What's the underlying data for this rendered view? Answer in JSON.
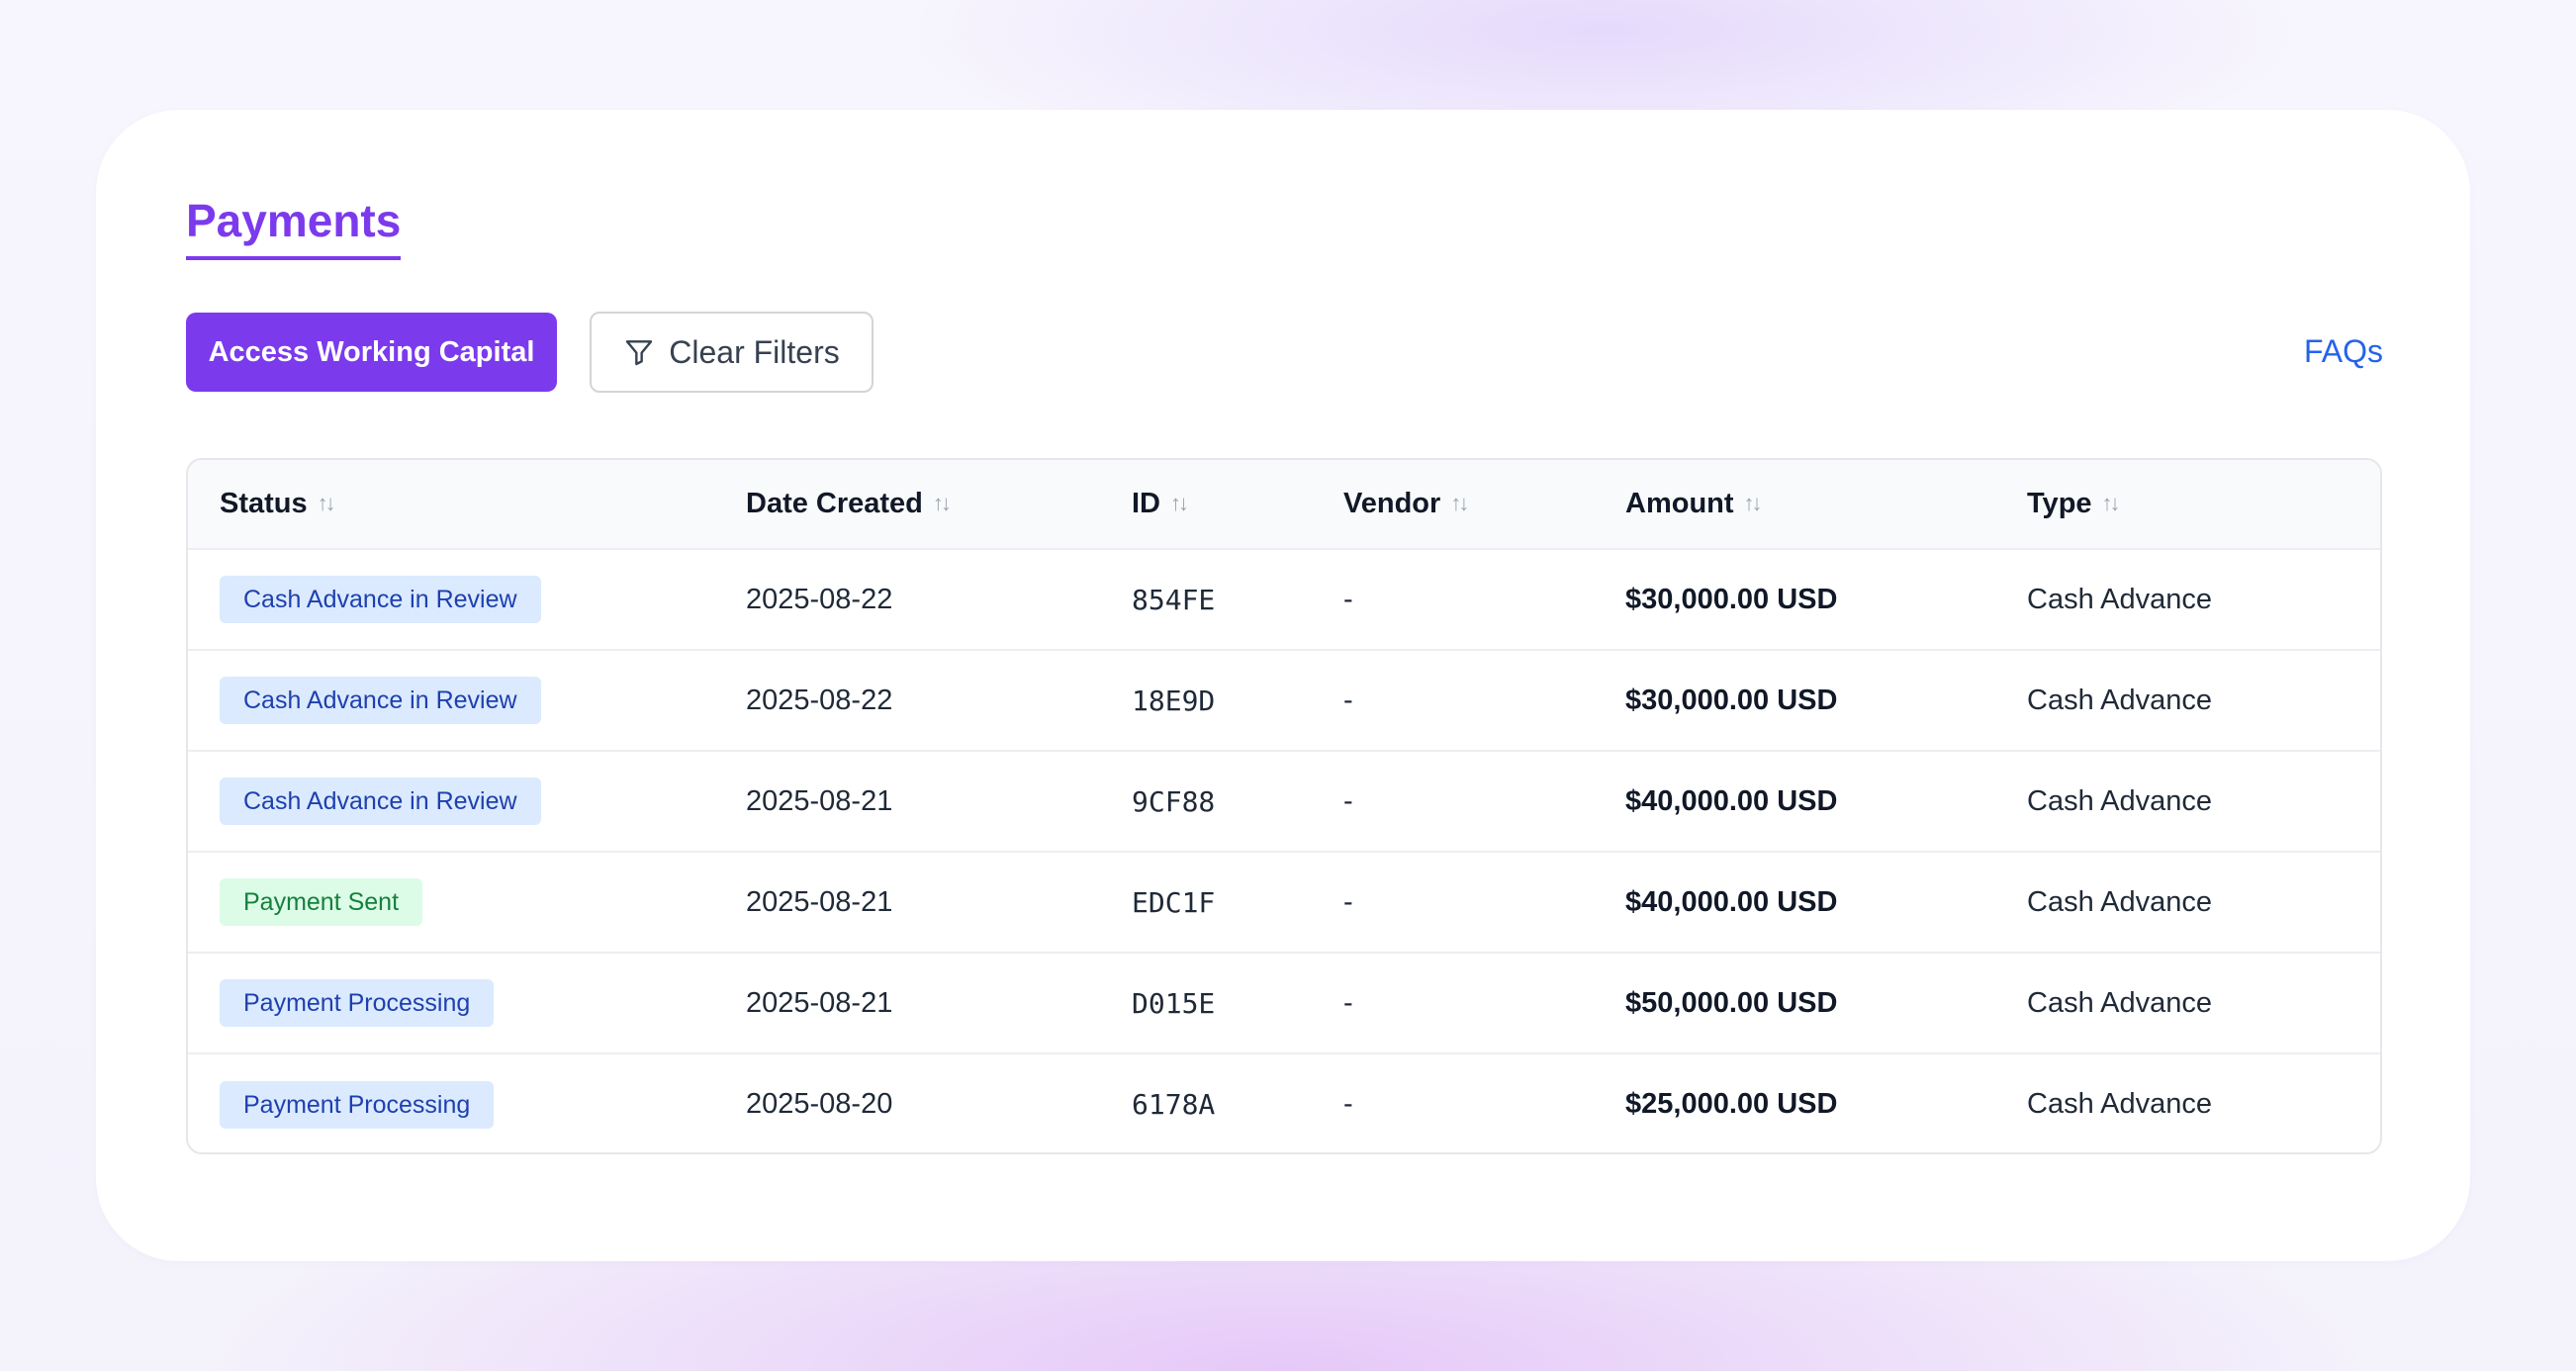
{
  "page": {
    "title": "Payments"
  },
  "toolbar": {
    "primary_label": "Access Working Capital",
    "clear_filters_label": "Clear Filters",
    "clear_filters_icon": "filter-icon",
    "faq_label": "FAQs"
  },
  "colors": {
    "accent": "#7c3aed",
    "link": "#2563eb",
    "badge_blue_bg": "#dbeafe",
    "badge_blue_text": "#1e40af",
    "badge_green_bg": "#dcfce7",
    "badge_green_text": "#15803d"
  },
  "table": {
    "sort_icon": "sort-arrows-icon",
    "columns": [
      "Status",
      "Date Created",
      "ID",
      "Vendor",
      "Amount",
      "Type"
    ],
    "rows": [
      {
        "status": "Cash Advance in Review",
        "status_variant": "review",
        "date": "2025-08-22",
        "id": "854FE",
        "vendor": "-",
        "amount": "$30,000.00 USD",
        "type": "Cash Advance"
      },
      {
        "status": "Cash Advance in Review",
        "status_variant": "review",
        "date": "2025-08-22",
        "id": "18E9D",
        "vendor": "-",
        "amount": "$30,000.00 USD",
        "type": "Cash Advance"
      },
      {
        "status": "Cash Advance in Review",
        "status_variant": "review",
        "date": "2025-08-21",
        "id": "9CF88",
        "vendor": "-",
        "amount": "$40,000.00 USD",
        "type": "Cash Advance"
      },
      {
        "status": "Payment Sent",
        "status_variant": "sent",
        "date": "2025-08-21",
        "id": "EDC1F",
        "vendor": "-",
        "amount": "$40,000.00 USD",
        "type": "Cash Advance"
      },
      {
        "status": "Payment Processing",
        "status_variant": "processing",
        "date": "2025-08-21",
        "id": "D015E",
        "vendor": "-",
        "amount": "$50,000.00 USD",
        "type": "Cash Advance"
      },
      {
        "status": "Payment Processing",
        "status_variant": "processing",
        "date": "2025-08-20",
        "id": "6178A",
        "vendor": "-",
        "amount": "$25,000.00 USD",
        "type": "Cash Advance"
      }
    ]
  }
}
